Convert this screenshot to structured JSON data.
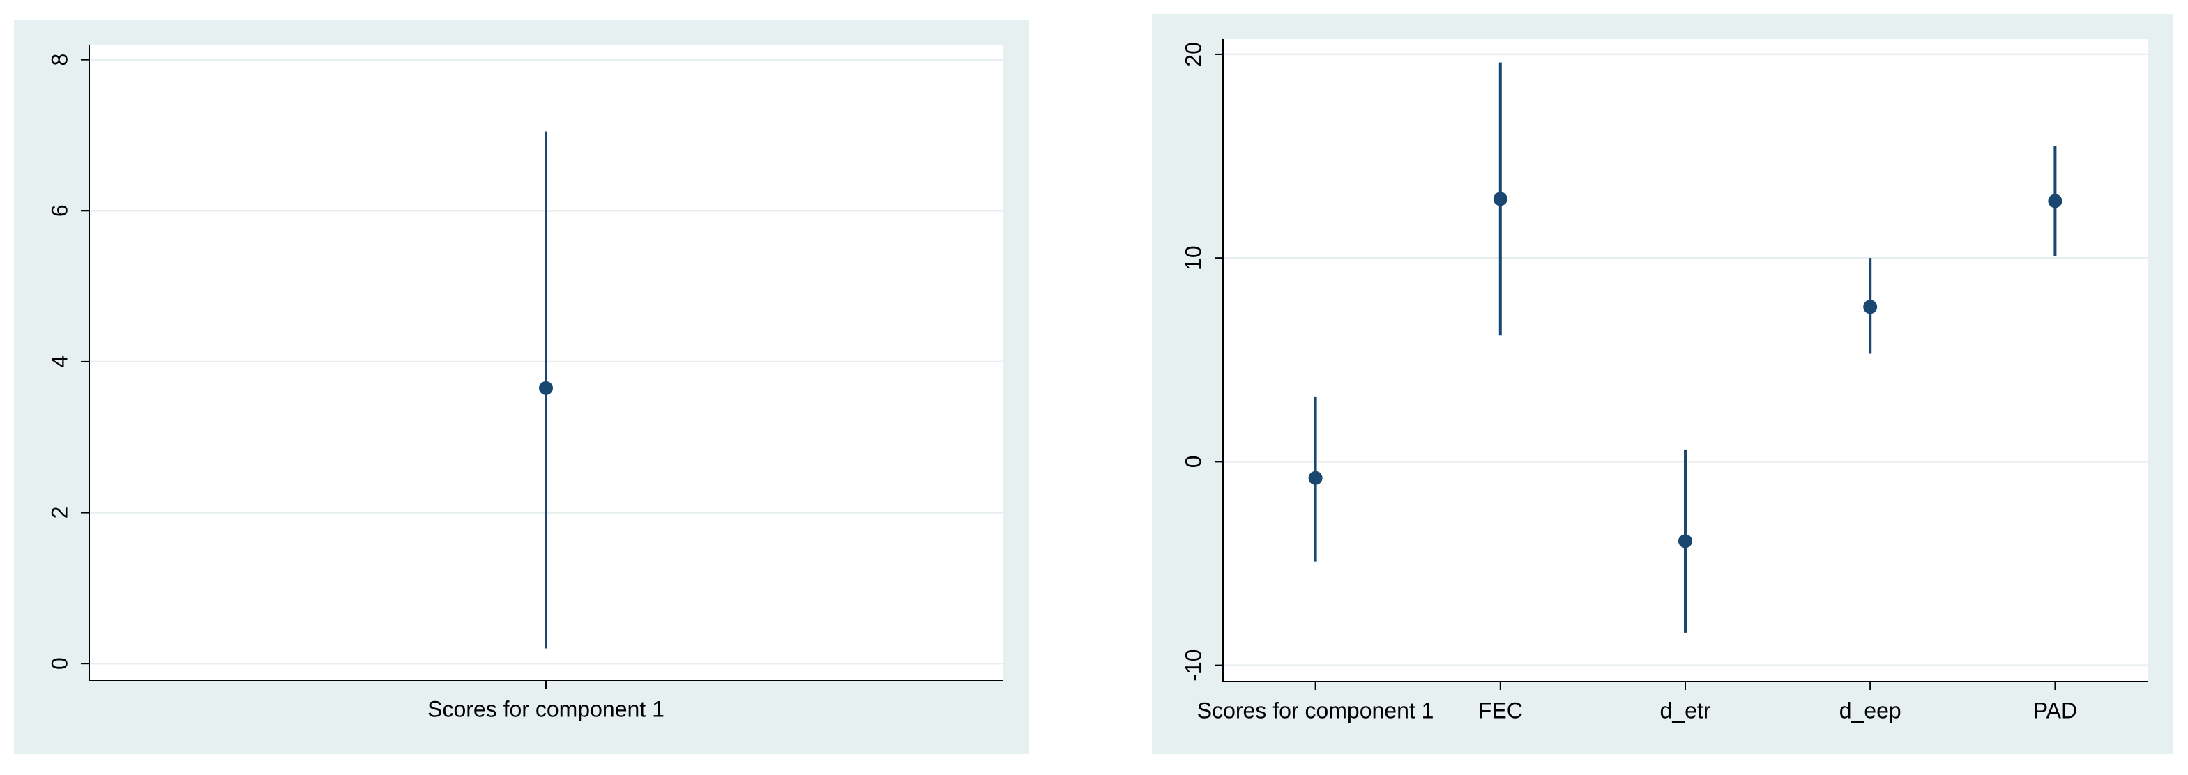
{
  "chart_data": [
    {
      "type": "errorbar",
      "categories": [
        "Scores for component 1"
      ],
      "values": [
        3.65
      ],
      "ci_low": [
        0.2
      ],
      "ci_high": [
        7.05
      ],
      "color": "#1a476f",
      "ylim": [
        -0.22,
        8.2
      ],
      "yticks": [
        0,
        2,
        4,
        6,
        8
      ],
      "grid": true
    },
    {
      "type": "errorbar",
      "categories": [
        "Scores for component 1",
        "FEC",
        "d_etr",
        "d_eep",
        "PAD"
      ],
      "values": [
        -0.8,
        12.9,
        -3.9,
        7.6,
        12.8
      ],
      "ci_low": [
        -4.9,
        6.2,
        -8.4,
        5.3,
        10.1
      ],
      "ci_high": [
        3.2,
        19.6,
        0.6,
        10.0,
        15.5
      ],
      "color": "#1a476f",
      "ylim": [
        -10.8,
        20.75
      ],
      "yticks": [
        -10,
        0,
        10,
        20
      ],
      "grid": true
    }
  ]
}
